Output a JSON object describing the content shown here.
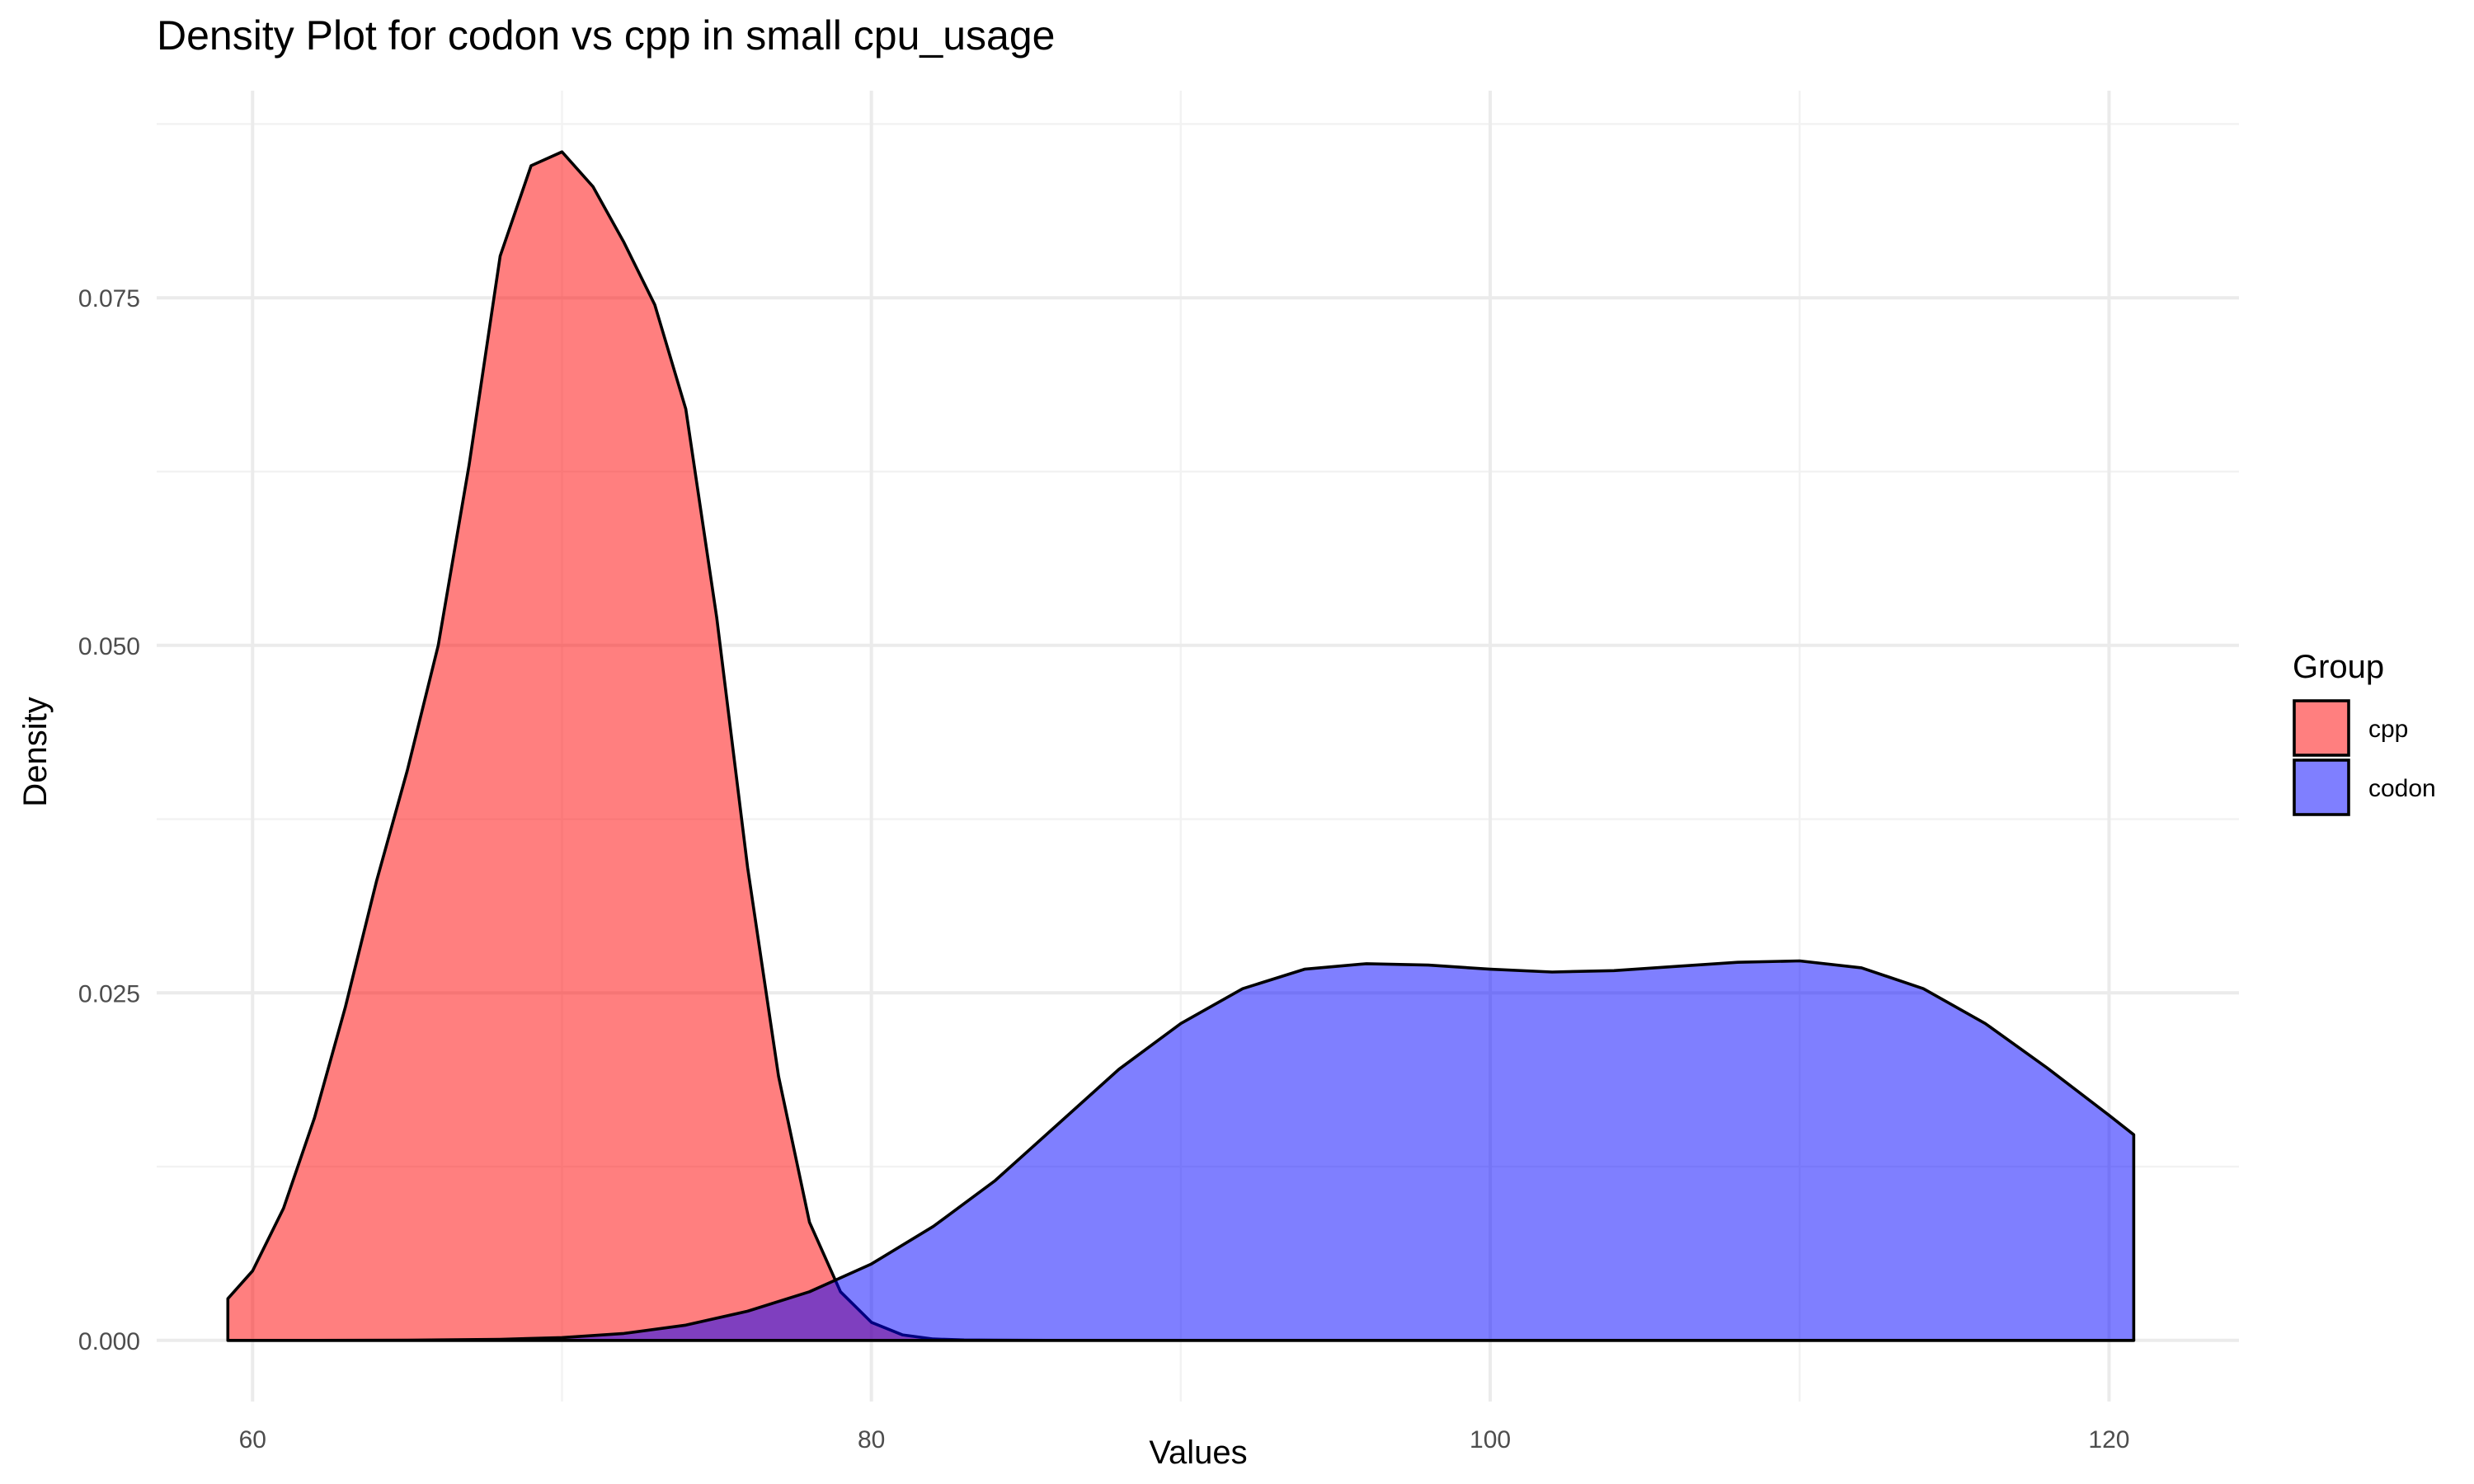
{
  "chart_data": {
    "type": "area",
    "title": "Density Plot for codon vs cpp in small cpu_usage",
    "xlabel": "Values",
    "ylabel": "Density",
    "xlim": [
      56.9,
      124.2
    ],
    "ylim": [
      -0.0044,
      0.0899
    ],
    "x_ticks": [
      60,
      80,
      100,
      120
    ],
    "x_tick_labels": [
      "60",
      "80",
      "100",
      "120"
    ],
    "y_ticks": [
      0,
      0.025,
      0.05,
      0.075
    ],
    "y_tick_labels": [
      "0.000",
      "0.025",
      "0.050",
      "0.075"
    ],
    "grid": true,
    "legend": {
      "title": "Group",
      "position": "right"
    },
    "series": [
      {
        "name": "cpp",
        "color": "#ff0000",
        "x": [
          59.2,
          60,
          61,
          62,
          63,
          64,
          65,
          66,
          67,
          68,
          69,
          70,
          71,
          72,
          73,
          74,
          75,
          76,
          77,
          78,
          79,
          80,
          81,
          82,
          83,
          84,
          86,
          90,
          95,
          100,
          110,
          120.8
        ],
        "y": [
          0.003,
          0.005,
          0.0095,
          0.016,
          0.024,
          0.033,
          0.041,
          0.05,
          0.063,
          0.078,
          0.0845,
          0.0855,
          0.083,
          0.079,
          0.0745,
          0.067,
          0.052,
          0.034,
          0.019,
          0.0085,
          0.0035,
          0.0013,
          0.0004,
          0.0001,
          3e-05,
          1e-05,
          0,
          0,
          0,
          0,
          0,
          0
        ]
      },
      {
        "name": "codon",
        "color": "#0000ff",
        "x": [
          59.2,
          62,
          65,
          68,
          70,
          72,
          74,
          76,
          78,
          80,
          82,
          84,
          86,
          88,
          90,
          92,
          94,
          96,
          98,
          100,
          102,
          104,
          106,
          108,
          110,
          112,
          114,
          116,
          118,
          120,
          120.8
        ],
        "y": [
          0,
          0,
          2e-05,
          8e-05,
          0.0002,
          0.0005,
          0.0011,
          0.0021,
          0.0035,
          0.0055,
          0.0082,
          0.0115,
          0.0155,
          0.0195,
          0.0228,
          0.0253,
          0.0267,
          0.0271,
          0.027,
          0.0267,
          0.0265,
          0.0266,
          0.0269,
          0.0272,
          0.0273,
          0.0268,
          0.0253,
          0.0228,
          0.0196,
          0.0162,
          0.0148
        ]
      }
    ]
  }
}
